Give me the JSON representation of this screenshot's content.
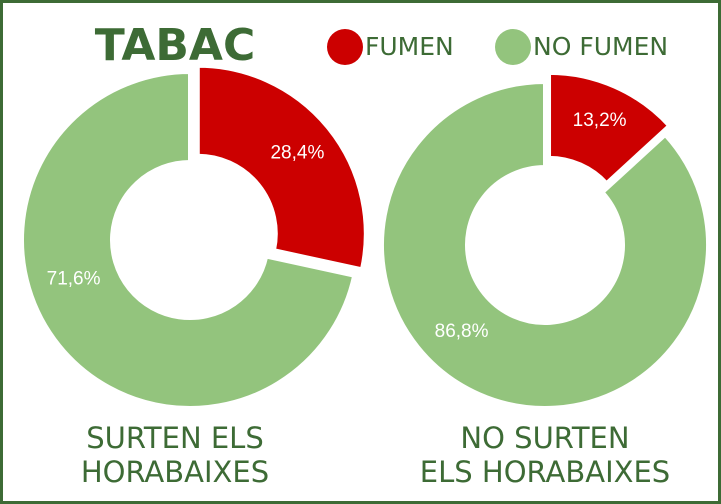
{
  "title": "TABAC",
  "chart_data": [
    {
      "type": "pie",
      "title": [
        "SURTEN ELS",
        "HORABAIXES"
      ],
      "categories": [
        "FUMEN",
        "NO FUMEN"
      ],
      "values": [
        28.4,
        71.6
      ],
      "value_labels": [
        "28,4%",
        "71,6%"
      ],
      "colors": [
        "#cc0000",
        "#93c47d"
      ]
    },
    {
      "type": "pie",
      "title": [
        "NO SURTEN",
        "ELS HORABAIXES"
      ],
      "categories": [
        "FUMEN",
        "NO FUMEN"
      ],
      "values": [
        13.2,
        86.8
      ],
      "value_labels": [
        "13,2%",
        "86,8%"
      ],
      "colors": [
        "#cc0000",
        "#93c47d"
      ]
    }
  ]
}
